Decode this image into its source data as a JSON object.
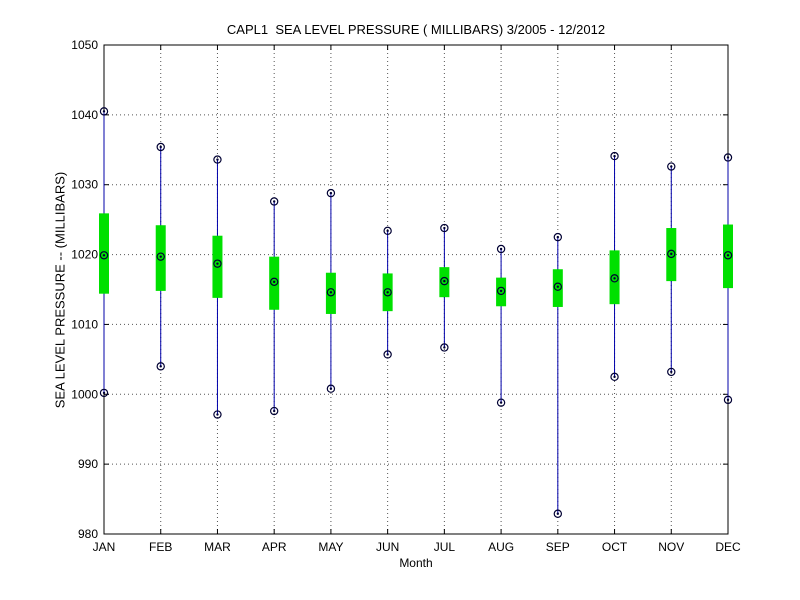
{
  "chart_data": {
    "type": "box",
    "title": "CAPL1  SEA LEVEL PRESSURE ( MILLIBARS) 3/2005 - 12/2012",
    "xlabel": "Month",
    "ylabel": "SEA LEVEL PRESSURE -- (MILLIBARS)",
    "ylim": [
      980,
      1050
    ],
    "yticks": [
      980,
      990,
      1000,
      1010,
      1020,
      1030,
      1040,
      1050
    ],
    "grid": true,
    "categories": [
      "JAN",
      "FEB",
      "MAR",
      "APR",
      "MAY",
      "JUN",
      "JUL",
      "AUG",
      "SEP",
      "OCT",
      "NOV",
      "DEC"
    ],
    "series": [
      {
        "stat": "max",
        "values": [
          1040.5,
          1035.4,
          1033.6,
          1027.6,
          1028.8,
          1023.4,
          1023.8,
          1020.8,
          1022.5,
          1034.1,
          1032.6,
          1033.9
        ]
      },
      {
        "stat": "q3",
        "values": [
          1025.9,
          1024.2,
          1022.7,
          1019.7,
          1017.4,
          1017.3,
          1018.2,
          1016.7,
          1017.9,
          1020.6,
          1023.8,
          1024.3
        ]
      },
      {
        "stat": "median",
        "values": [
          1019.9,
          1019.7,
          1018.7,
          1016.1,
          1014.6,
          1014.6,
          1016.2,
          1014.8,
          1015.4,
          1016.6,
          1020.1,
          1019.9
        ]
      },
      {
        "stat": "q1",
        "values": [
          1014.4,
          1014.8,
          1013.8,
          1012.1,
          1011.5,
          1011.9,
          1013.9,
          1012.6,
          1012.5,
          1012.9,
          1016.2,
          1015.2
        ]
      },
      {
        "stat": "min",
        "values": [
          1000.2,
          1004.0,
          997.1,
          997.6,
          1000.8,
          1005.7,
          1006.7,
          998.8,
          982.9,
          1002.5,
          1003.2,
          999.2
        ]
      }
    ],
    "colors": {
      "whisker": "#0000aa",
      "box": "#00e000",
      "marker": "#000033",
      "grid": "#555555",
      "axis": "#000000"
    }
  }
}
